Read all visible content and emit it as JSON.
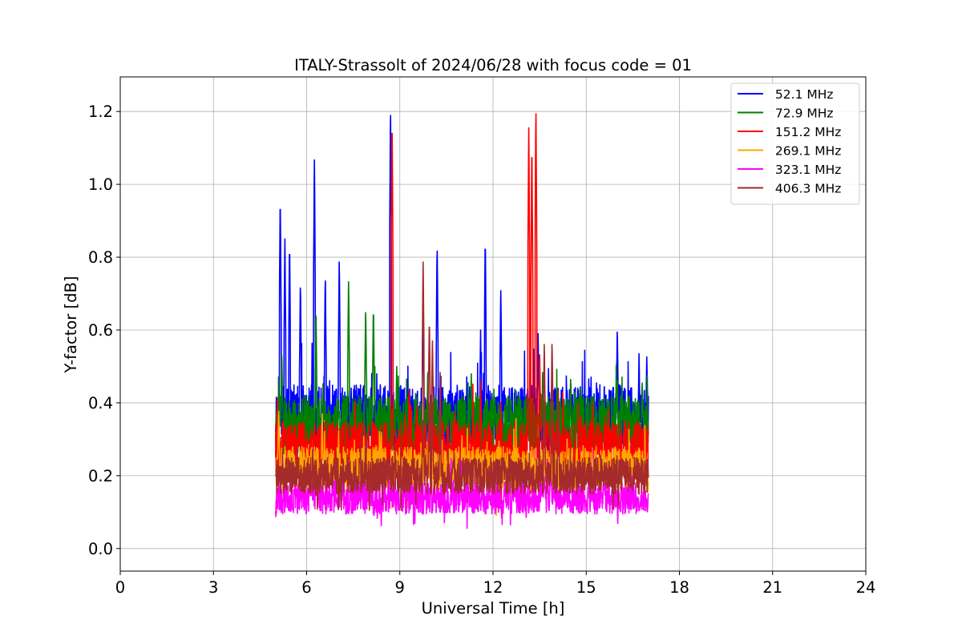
{
  "chart_data": {
    "type": "line",
    "title": "ITALY-Strassolt of 2024/06/28 with focus code = 01",
    "xlabel": "Universal Time [h]",
    "ylabel": "Y-factor [dB]",
    "xlim": [
      0,
      24
    ],
    "ylim": [
      -0.062,
      1.295
    ],
    "xticks": [
      0,
      3,
      6,
      9,
      12,
      15,
      18,
      21,
      24
    ],
    "yticks": [
      0.0,
      0.2,
      0.4,
      0.6,
      0.8,
      1.0,
      1.2
    ],
    "xtick_labels": [
      "0",
      "3",
      "6",
      "9",
      "12",
      "15",
      "18",
      "21",
      "24"
    ],
    "ytick_labels": [
      "0.0",
      "0.2",
      "0.4",
      "0.6",
      "0.8",
      "1.0",
      "1.2"
    ],
    "grid": true,
    "legend_position": "top-right",
    "series": [
      {
        "name": " 52.1 MHz",
        "color": "#0000ff",
        "base": 0.36,
        "noise": 0.09,
        "spikes": [
          [
            5.15,
            0.98
          ],
          [
            5.3,
            0.85
          ],
          [
            5.45,
            0.85
          ],
          [
            5.8,
            0.74
          ],
          [
            6.25,
            1.085
          ],
          [
            6.6,
            0.76
          ],
          [
            7.05,
            0.8
          ],
          [
            8.7,
            1.23
          ],
          [
            9.75,
            0.65
          ],
          [
            10.2,
            0.845
          ],
          [
            11.6,
            0.6
          ],
          [
            11.75,
            0.865
          ],
          [
            12.25,
            0.72
          ],
          [
            13.45,
            0.6
          ],
          [
            16.0,
            0.615
          ],
          [
            16.7,
            0.535
          ],
          [
            16.95,
            0.535
          ]
        ]
      },
      {
        "name": " 72.9 MHz",
        "color": "#008000",
        "base": 0.34,
        "noise": 0.08,
        "spikes": [
          [
            5.2,
            0.55
          ],
          [
            6.3,
            0.66
          ],
          [
            7.35,
            0.745
          ],
          [
            7.9,
            0.67
          ],
          [
            8.15,
            0.675
          ],
          [
            8.9,
            0.5
          ],
          [
            9.9,
            0.5
          ],
          [
            11.3,
            0.48
          ],
          [
            13.6,
            0.5
          ],
          [
            14.5,
            0.48
          ],
          [
            16.0,
            0.47
          ],
          [
            16.8,
            0.47
          ]
        ]
      },
      {
        "name": " 151.2 MHz",
        "color": "#ff0000",
        "base": 0.27,
        "noise": 0.08,
        "spikes": [
          [
            8.75,
            1.2
          ],
          [
            9.3,
            0.45
          ],
          [
            11.6,
            0.46
          ],
          [
            13.15,
            1.175
          ],
          [
            13.25,
            1.13
          ],
          [
            13.38,
            1.235
          ],
          [
            13.5,
            0.55
          ],
          [
            15.2,
            0.4
          ]
        ]
      },
      {
        "name": " 269.1 MHz",
        "color": "#ffa500",
        "base": 0.22,
        "noise": 0.06,
        "spikes": [
          [
            5.1,
            0.39
          ],
          [
            6.5,
            0.37
          ],
          [
            8.4,
            0.33
          ],
          [
            11.0,
            0.31
          ],
          [
            16.8,
            0.27
          ]
        ]
      },
      {
        "name": " 323.1 MHz",
        "color": "#ff00ff",
        "base": 0.14,
        "noise": 0.045,
        "spikes": [
          [
            13.75,
            0.25
          ],
          [
            13.85,
            0.23
          ],
          [
            13.65,
            0.2
          ],
          [
            13.95,
            0.18
          ]
        ]
      },
      {
        "name": " 406.3 MHz",
        "color": "#a52a2a",
        "base": 0.2,
        "noise": 0.05,
        "spikes": [
          [
            9.75,
            0.8
          ],
          [
            9.95,
            0.64
          ],
          [
            10.05,
            0.58
          ],
          [
            10.3,
            0.5
          ],
          [
            13.65,
            0.57
          ],
          [
            13.9,
            0.58
          ],
          [
            14.1,
            0.45
          ]
        ]
      }
    ],
    "data_window": [
      5.0,
      17.0
    ]
  }
}
